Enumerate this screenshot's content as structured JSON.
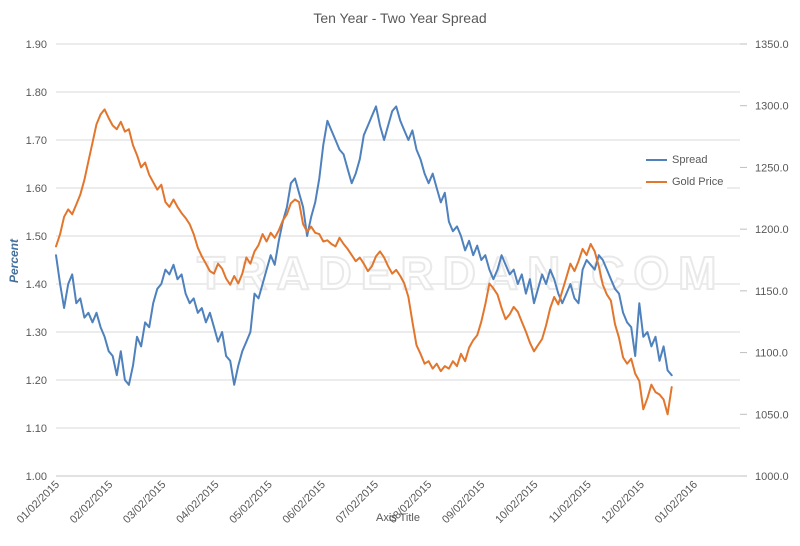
{
  "watermark": "TRADERDAN.COM",
  "chart_data": {
    "type": "line",
    "title": "Ten Year - Two Year Spread",
    "grid": "horizontal",
    "legend_position": "right-inside",
    "data_span_months": 11.58,
    "x_axis": {
      "title": "Axis Title",
      "tick_labels": [
        "01/02/2015",
        "02/02/2015",
        "03/02/2015",
        "04/02/2015",
        "05/02/2015",
        "06/02/2015",
        "07/02/2015",
        "08/02/2015",
        "09/02/2015",
        "10/02/2015",
        "11/02/2015",
        "12/02/2015",
        "01/02/2016"
      ]
    },
    "y_left": {
      "title": "Percent",
      "title_color": "#44709d",
      "min": 1.0,
      "max": 1.9,
      "tick_labels": [
        "1.00",
        "1.10",
        "1.20",
        "1.30",
        "1.40",
        "1.50",
        "1.60",
        "1.70",
        "1.80",
        "1.90"
      ]
    },
    "y_right": {
      "min": 1000.0,
      "max": 1350.0,
      "tick_labels": [
        "1000.0",
        "1050.0",
        "1100.0",
        "1150.0",
        "1200.0",
        "1250.0",
        "1300.0",
        "1350.0"
      ]
    },
    "series": [
      {
        "name": "Spread",
        "axis": "left",
        "color": "#4f81bd",
        "values": [
          1.46,
          1.4,
          1.35,
          1.4,
          1.42,
          1.36,
          1.37,
          1.33,
          1.34,
          1.32,
          1.34,
          1.31,
          1.29,
          1.26,
          1.25,
          1.21,
          1.26,
          1.2,
          1.19,
          1.23,
          1.29,
          1.27,
          1.32,
          1.31,
          1.36,
          1.39,
          1.4,
          1.43,
          1.42,
          1.44,
          1.41,
          1.42,
          1.38,
          1.36,
          1.37,
          1.34,
          1.35,
          1.32,
          1.34,
          1.31,
          1.28,
          1.3,
          1.25,
          1.24,
          1.19,
          1.23,
          1.26,
          1.28,
          1.3,
          1.38,
          1.37,
          1.4,
          1.43,
          1.46,
          1.44,
          1.49,
          1.53,
          1.56,
          1.61,
          1.62,
          1.59,
          1.56,
          1.5,
          1.54,
          1.57,
          1.62,
          1.69,
          1.74,
          1.72,
          1.7,
          1.68,
          1.67,
          1.64,
          1.61,
          1.63,
          1.66,
          1.71,
          1.73,
          1.75,
          1.77,
          1.73,
          1.7,
          1.73,
          1.76,
          1.77,
          1.74,
          1.72,
          1.7,
          1.72,
          1.68,
          1.66,
          1.63,
          1.61,
          1.63,
          1.6,
          1.57,
          1.59,
          1.53,
          1.51,
          1.52,
          1.5,
          1.47,
          1.49,
          1.46,
          1.48,
          1.45,
          1.46,
          1.43,
          1.41,
          1.43,
          1.46,
          1.44,
          1.42,
          1.43,
          1.4,
          1.42,
          1.38,
          1.41,
          1.36,
          1.39,
          1.42,
          1.4,
          1.43,
          1.41,
          1.38,
          1.36,
          1.38,
          1.4,
          1.37,
          1.36,
          1.43,
          1.45,
          1.44,
          1.43,
          1.46,
          1.45,
          1.43,
          1.41,
          1.39,
          1.38,
          1.34,
          1.32,
          1.31,
          1.25,
          1.36,
          1.29,
          1.3,
          1.27,
          1.29,
          1.24,
          1.27,
          1.22,
          1.21
        ]
      },
      {
        "name": "Gold Price",
        "axis": "right",
        "color": "#e2762d",
        "values": [
          1186,
          1196,
          1210,
          1216,
          1212,
          1220,
          1228,
          1240,
          1255,
          1270,
          1285,
          1293,
          1297,
          1290,
          1284,
          1281,
          1287,
          1279,
          1281,
          1268,
          1260,
          1250,
          1254,
          1244,
          1238,
          1232,
          1236,
          1222,
          1218,
          1224,
          1218,
          1213,
          1209,
          1204,
          1196,
          1185,
          1178,
          1172,
          1166,
          1164,
          1172,
          1168,
          1160,
          1155,
          1162,
          1156,
          1164,
          1177,
          1172,
          1182,
          1187,
          1196,
          1190,
          1197,
          1193,
          1199,
          1207,
          1212,
          1221,
          1224,
          1222,
          1204,
          1198,
          1202,
          1197,
          1196,
          1190,
          1191,
          1188,
          1186,
          1193,
          1188,
          1184,
          1179,
          1174,
          1177,
          1172,
          1166,
          1170,
          1178,
          1182,
          1177,
          1170,
          1164,
          1167,
          1162,
          1156,
          1145,
          1125,
          1106,
          1099,
          1091,
          1093,
          1087,
          1091,
          1085,
          1089,
          1087,
          1093,
          1089,
          1099,
          1093,
          1104,
          1110,
          1114,
          1125,
          1139,
          1156,
          1152,
          1147,
          1136,
          1127,
          1131,
          1137,
          1133,
          1125,
          1117,
          1108,
          1101,
          1106,
          1111,
          1122,
          1136,
          1145,
          1139,
          1150,
          1161,
          1172,
          1166,
          1174,
          1184,
          1179,
          1188,
          1182,
          1170,
          1155,
          1147,
          1142,
          1123,
          1112,
          1096,
          1091,
          1095,
          1083,
          1077,
          1054,
          1063,
          1074,
          1068,
          1066,
          1062,
          1050,
          1072
        ]
      }
    ]
  }
}
